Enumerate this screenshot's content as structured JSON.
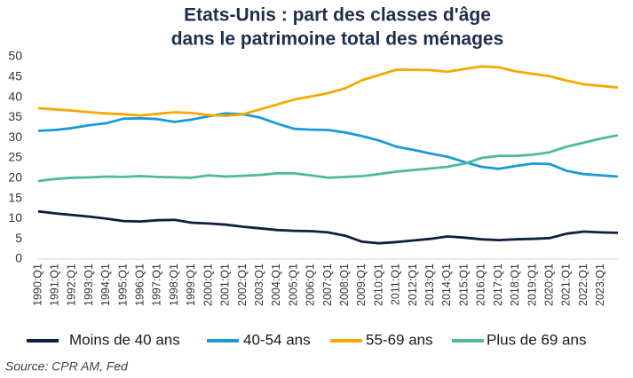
{
  "chart_data": {
    "type": "line",
    "title": [
      "Etats-Unis : part des classes d'âge",
      "dans le patrimoine total des ménages"
    ],
    "source": "Source: CPR AM, Fed",
    "categories": [
      "1990:Q1",
      "1991:Q1",
      "1992:Q1",
      "1993:Q1",
      "1994:Q1",
      "1995:Q1",
      "1996:Q1",
      "1997:Q1",
      "1998:Q1",
      "1999:Q1",
      "2000:Q1",
      "2001:Q1",
      "2002:Q1",
      "2003:Q1",
      "2004:Q1",
      "2005:Q1",
      "2006:Q1",
      "2007:Q1",
      "2008:Q1",
      "2009:Q1",
      "2010:Q1",
      "2011:Q1",
      "2012:Q1",
      "2013:Q1",
      "2014:Q1",
      "2015:Q1",
      "2016:Q1",
      "2017:Q1",
      "2018:Q1",
      "2019:Q1",
      "2020:Q1",
      "2021:Q1",
      "2022:Q1",
      "2023:Q1",
      null
    ],
    "series": [
      {
        "name": "Moins de 40 ans",
        "color": "#0e1f3f",
        "values": [
          11.8,
          11.3,
          10.9,
          10.5,
          10.0,
          9.4,
          9.3,
          9.6,
          9.7,
          9.0,
          8.8,
          8.5,
          8.0,
          7.6,
          7.2,
          7.0,
          6.9,
          6.6,
          5.8,
          4.3,
          3.9,
          4.2,
          4.6,
          5.0,
          5.6,
          5.3,
          4.9,
          4.7,
          4.9,
          5.0,
          5.2,
          6.3,
          6.8,
          6.6,
          6.5
        ]
      },
      {
        "name": "40-54 ans",
        "color": "#1a9ad6",
        "values": [
          31.7,
          31.9,
          32.4,
          33.1,
          33.6,
          34.7,
          34.8,
          34.6,
          33.9,
          34.5,
          35.3,
          36.0,
          35.8,
          35.0,
          33.5,
          32.2,
          32.0,
          31.9,
          31.3,
          30.4,
          29.3,
          27.8,
          27.0,
          26.1,
          25.3,
          24.0,
          22.8,
          22.3,
          23.0,
          23.6,
          23.5,
          21.8,
          21.0,
          20.7,
          20.4
        ]
      },
      {
        "name": "55-69 ans",
        "color": "#f5a800",
        "values": [
          37.3,
          37.0,
          36.7,
          36.3,
          36.0,
          35.8,
          35.5,
          35.9,
          36.3,
          36.1,
          35.6,
          35.4,
          35.8,
          37.0,
          38.2,
          39.4,
          40.2,
          41.0,
          42.2,
          44.2,
          45.5,
          46.8,
          46.8,
          46.7,
          46.3,
          47.0,
          47.6,
          47.4,
          46.4,
          45.8,
          45.2,
          44.1,
          43.2,
          42.8,
          42.4
        ]
      },
      {
        "name": "Plus de 69 ans",
        "color": "#4fb99c",
        "values": [
          19.3,
          19.8,
          20.1,
          20.2,
          20.4,
          20.3,
          20.5,
          20.3,
          20.2,
          20.1,
          20.7,
          20.4,
          20.6,
          20.8,
          21.2,
          21.2,
          20.7,
          20.1,
          20.3,
          20.5,
          21.0,
          21.6,
          22.0,
          22.4,
          22.8,
          23.6,
          25.0,
          25.5,
          25.5,
          25.8,
          26.4,
          27.8,
          28.8,
          29.8,
          30.6
        ]
      }
    ],
    "ylim": [
      0,
      50
    ],
    "yticks": [
      0,
      5,
      10,
      15,
      20,
      25,
      30,
      35,
      40,
      45,
      50
    ],
    "grid": false
  }
}
